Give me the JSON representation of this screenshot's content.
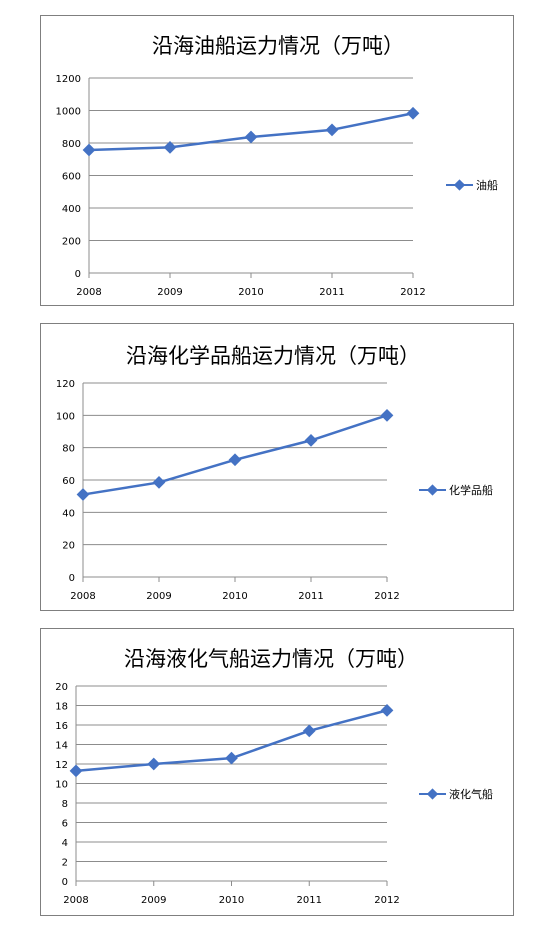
{
  "chart_data": [
    {
      "type": "line",
      "title": "沿海油船运力情况（万吨）",
      "categories": [
        "2008",
        "2009",
        "2010",
        "2011",
        "2012"
      ],
      "series": [
        {
          "name": "油船",
          "values": [
            757,
            773,
            837,
            881,
            983
          ],
          "color": "#4472c4"
        }
      ],
      "yticks": [
        "0",
        "200",
        "400",
        "600",
        "800",
        "1000",
        "1200"
      ],
      "ylim": [
        0,
        1200
      ],
      "grid": true,
      "legend_position": "right"
    },
    {
      "type": "line",
      "title": "沿海化学品船运力情况（万吨）",
      "categories": [
        "2008",
        "2009",
        "2010",
        "2011",
        "2012"
      ],
      "series": [
        {
          "name": "化学品船",
          "values": [
            51,
            58.5,
            72.5,
            84.5,
            100
          ],
          "color": "#4472c4"
        }
      ],
      "yticks": [
        "0",
        "20",
        "40",
        "60",
        "80",
        "100",
        "120"
      ],
      "ylim": [
        0,
        120
      ],
      "grid": true,
      "legend_position": "right"
    },
    {
      "type": "line",
      "title": "沿海液化气船运力情况（万吨）",
      "categories": [
        "2008",
        "2009",
        "2010",
        "2011",
        "2012"
      ],
      "series": [
        {
          "name": "液化气船",
          "values": [
            11.3,
            12.0,
            12.6,
            15.4,
            17.5
          ],
          "color": "#4472c4"
        }
      ],
      "yticks": [
        "0",
        "2",
        "4",
        "6",
        "8",
        "10",
        "12",
        "14",
        "16",
        "18",
        "20"
      ],
      "ylim": [
        0,
        20
      ],
      "grid": true,
      "legend_position": "right"
    }
  ]
}
